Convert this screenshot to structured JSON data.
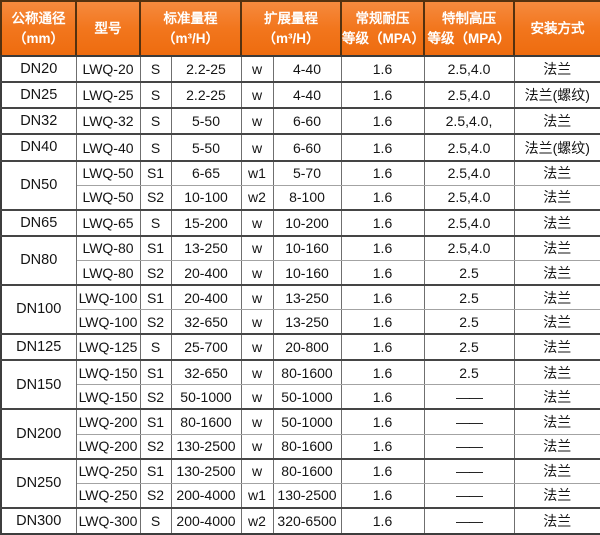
{
  "colors": {
    "header_bg": "#f2761d",
    "header_bg_top": "#f68a3e",
    "header_bg_bottom": "#ee6c0f",
    "header_text": "#ffffff",
    "header_border": "#54310f",
    "outer_border": "#3d3d3d",
    "group_border": "#454545",
    "inner_border": "#a3a3a3",
    "body_text": "#141414",
    "body_bg": "#ffffff"
  },
  "table": {
    "headers": [
      "公称通径\n（mm）",
      "型号",
      "标准量程\n（m³/H）",
      "扩展量程\n（m³/H）",
      "常规耐压\n等级（MPA）",
      "特制高压\n等级（MPA）",
      "安装方式"
    ],
    "groups": [
      {
        "dn": "DN20",
        "rows": [
          {
            "model": "LWQ-20",
            "std_code": "S",
            "std_range": "2.2-25",
            "ext_code": "w",
            "ext_range": "4-40",
            "normal_mpa": "1.6",
            "special_mpa": "2.5,4.0",
            "install": "法兰"
          }
        ]
      },
      {
        "dn": "DN25",
        "rows": [
          {
            "model": "LWQ-25",
            "std_code": "S",
            "std_range": "2.2-25",
            "ext_code": "w",
            "ext_range": "4-40",
            "normal_mpa": "1.6",
            "special_mpa": "2.5,4.0",
            "install": "法兰(螺纹)"
          }
        ]
      },
      {
        "dn": "DN32",
        "rows": [
          {
            "model": "LWQ-32",
            "std_code": "S",
            "std_range": "5-50",
            "ext_code": "w",
            "ext_range": "6-60",
            "normal_mpa": "1.6",
            "special_mpa": "2.5,4.0,",
            "install": "法兰"
          }
        ]
      },
      {
        "dn": "DN40",
        "rows": [
          {
            "model": "LWQ-40",
            "std_code": "S",
            "std_range": "5-50",
            "ext_code": "w",
            "ext_range": "6-60",
            "normal_mpa": "1.6",
            "special_mpa": "2.5,4.0",
            "install": "法兰(螺纹)"
          }
        ]
      },
      {
        "dn": "DN50",
        "rows": [
          {
            "model": "LWQ-50",
            "std_code": "S1",
            "std_range": "6-65",
            "ext_code": "w1",
            "ext_range": "5-70",
            "normal_mpa": "1.6",
            "special_mpa": "2.5,4.0",
            "install": "法兰"
          },
          {
            "model": "LWQ-50",
            "std_code": "S2",
            "std_range": "10-100",
            "ext_code": "w2",
            "ext_range": "8-100",
            "normal_mpa": "1.6",
            "special_mpa": "2.5,4.0",
            "install": "法兰"
          }
        ]
      },
      {
        "dn": "DN65",
        "rows": [
          {
            "model": "LWQ-65",
            "std_code": "S",
            "std_range": "15-200",
            "ext_code": "w",
            "ext_range": "10-200",
            "normal_mpa": "1.6",
            "special_mpa": "2.5,4.0",
            "install": "法兰"
          }
        ]
      },
      {
        "dn": "DN80",
        "rows": [
          {
            "model": "LWQ-80",
            "std_code": "S1",
            "std_range": "13-250",
            "ext_code": "w",
            "ext_range": "10-160",
            "normal_mpa": "1.6",
            "special_mpa": "2.5,4.0",
            "install": "法兰"
          },
          {
            "model": "LWQ-80",
            "std_code": "S2",
            "std_range": "20-400",
            "ext_code": "w",
            "ext_range": "10-160",
            "normal_mpa": "1.6",
            "special_mpa": "2.5",
            "install": "法兰"
          }
        ]
      },
      {
        "dn": "DN100",
        "rows": [
          {
            "model": "LWQ-100",
            "std_code": "S1",
            "std_range": "20-400",
            "ext_code": "w",
            "ext_range": "13-250",
            "normal_mpa": "1.6",
            "special_mpa": "2.5",
            "install": "法兰"
          },
          {
            "model": "LWQ-100",
            "std_code": "S2",
            "std_range": "32-650",
            "ext_code": "w",
            "ext_range": "13-250",
            "normal_mpa": "1.6",
            "special_mpa": "2.5",
            "install": "法兰"
          }
        ]
      },
      {
        "dn": "DN125",
        "rows": [
          {
            "model": "LWQ-125",
            "std_code": "S",
            "std_range": "25-700",
            "ext_code": "w",
            "ext_range": "20-800",
            "normal_mpa": "1.6",
            "special_mpa": "2.5",
            "install": "法兰"
          }
        ]
      },
      {
        "dn": "DN150",
        "rows": [
          {
            "model": "LWQ-150",
            "std_code": "S1",
            "std_range": "32-650",
            "ext_code": "w",
            "ext_range": "80-1600",
            "normal_mpa": "1.6",
            "special_mpa": "2.5",
            "install": "法兰"
          },
          {
            "model": "LWQ-150",
            "std_code": "S2",
            "std_range": "50-1000",
            "ext_code": "w",
            "ext_range": "50-1000",
            "normal_mpa": "1.6",
            "special_mpa": "——",
            "install": "法兰"
          }
        ]
      },
      {
        "dn": "DN200",
        "rows": [
          {
            "model": "LWQ-200",
            "std_code": "S1",
            "std_range": "80-1600",
            "ext_code": "w",
            "ext_range": "50-1000",
            "normal_mpa": "1.6",
            "special_mpa": "——",
            "install": "法兰"
          },
          {
            "model": "LWQ-200",
            "std_code": "S2",
            "std_range": "130-2500",
            "ext_code": "w",
            "ext_range": "80-1600",
            "normal_mpa": "1.6",
            "special_mpa": "——",
            "install": "法兰"
          }
        ]
      },
      {
        "dn": "DN250",
        "rows": [
          {
            "model": "LWQ-250",
            "std_code": "S1",
            "std_range": "130-2500",
            "ext_code": "w",
            "ext_range": "80-1600",
            "normal_mpa": "1.6",
            "special_mpa": "——",
            "install": "法兰"
          },
          {
            "model": "LWQ-250",
            "std_code": "S2",
            "std_range": "200-4000",
            "ext_code": "w1",
            "ext_range": "130-2500",
            "normal_mpa": "1.6",
            "special_mpa": "——",
            "install": "法兰"
          }
        ]
      },
      {
        "dn": "DN300",
        "rows": [
          {
            "model": "LWQ-300",
            "std_code": "S",
            "std_range": "200-4000",
            "ext_code": "w2",
            "ext_range": "320-6500",
            "normal_mpa": "1.6",
            "special_mpa": "——",
            "install": "法兰"
          }
        ]
      }
    ]
  }
}
